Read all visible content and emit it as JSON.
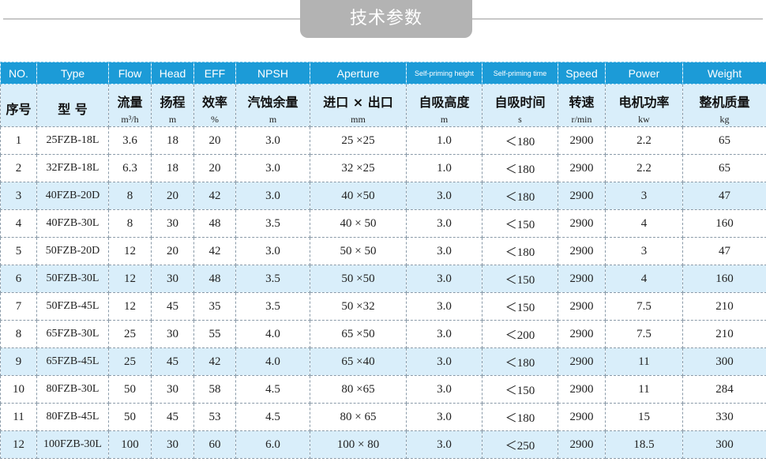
{
  "title": "技术参数",
  "colors": {
    "header_blue": "#1c9bd7",
    "highlight_row": "#d9eefa",
    "title_pill": "#b3b3b3"
  },
  "columns": [
    {
      "en": "NO.",
      "cn": "序号",
      "unit": ""
    },
    {
      "en": "Type",
      "cn": "型  号",
      "unit": ""
    },
    {
      "en": "Flow",
      "cn": "流量",
      "unit": "m³/h"
    },
    {
      "en": "Head",
      "cn": "扬程",
      "unit": "m"
    },
    {
      "en": "EFF",
      "cn": "效率",
      "unit": "%"
    },
    {
      "en": "NPSH",
      "cn": "汽蚀余量",
      "unit": "m"
    },
    {
      "en": "Aperture",
      "cn": "进口 × 出口",
      "unit": "mm"
    },
    {
      "en": "Self-priming height",
      "cn": "自吸高度",
      "unit": "m"
    },
    {
      "en": "Self-priming time",
      "cn": "自吸时间",
      "unit": "s"
    },
    {
      "en": "Speed",
      "cn": "转速",
      "unit": "r/min"
    },
    {
      "en": "Power",
      "cn": "电机功率",
      "unit": "kw"
    },
    {
      "en": "Weight",
      "cn": "整机质量",
      "unit": "kg"
    }
  ],
  "rows": [
    [
      "1",
      "25FZB-18L",
      "3.6",
      "18",
      "20",
      "3.0",
      "25 ×25",
      "1.0",
      "＜180",
      "2900",
      "2.2",
      "65"
    ],
    [
      "2",
      "32FZB-18L",
      "6.3",
      "18",
      "20",
      "3.0",
      "32 ×25",
      "1.0",
      "＜180",
      "2900",
      "2.2",
      "65"
    ],
    [
      "3",
      "40FZB-20D",
      "8",
      "20",
      "42",
      "3.0",
      "40 ×50",
      "3.0",
      "＜180",
      "2900",
      "3",
      "47"
    ],
    [
      "4",
      "40FZB-30L",
      "8",
      "30",
      "48",
      "3.5",
      "40 × 50",
      "3.0",
      "＜150",
      "2900",
      "4",
      "160"
    ],
    [
      "5",
      "50FZB-20D",
      "12",
      "20",
      "42",
      "3.0",
      "50 × 50",
      "3.0",
      "＜180",
      "2900",
      "3",
      "47"
    ],
    [
      "6",
      "50FZB-30L",
      "12",
      "30",
      "48",
      "3.5",
      "50 ×50",
      "3.0",
      "＜150",
      "2900",
      "4",
      "160"
    ],
    [
      "7",
      "50FZB-45L",
      "12",
      "45",
      "35",
      "3.5",
      "50 ×32",
      "3.0",
      "＜150",
      "2900",
      "7.5",
      "210"
    ],
    [
      "8",
      "65FZB-30L",
      "25",
      "30",
      "55",
      "4.0",
      "65 ×50",
      "3.0",
      "＜200",
      "2900",
      "7.5",
      "210"
    ],
    [
      "9",
      "65FZB-45L",
      "25",
      "45",
      "42",
      "4.0",
      "65 ×40",
      "3.0",
      "＜180",
      "2900",
      "11",
      "300"
    ],
    [
      "10",
      "80FZB-30L",
      "50",
      "30",
      "58",
      "4.5",
      "80 ×65",
      "3.0",
      "＜150",
      "2900",
      "11",
      "284"
    ],
    [
      "11",
      "80FZB-45L",
      "50",
      "45",
      "53",
      "4.5",
      "80 × 65",
      "3.0",
      "＜180",
      "2900",
      "15",
      "330"
    ],
    [
      "12",
      "100FZB-30L",
      "100",
      "30",
      "60",
      "6.0",
      "100 × 80",
      "3.0",
      "＜250",
      "2900",
      "18.5",
      "300"
    ]
  ],
  "highlighted_rows": [
    3,
    6,
    9,
    12
  ]
}
